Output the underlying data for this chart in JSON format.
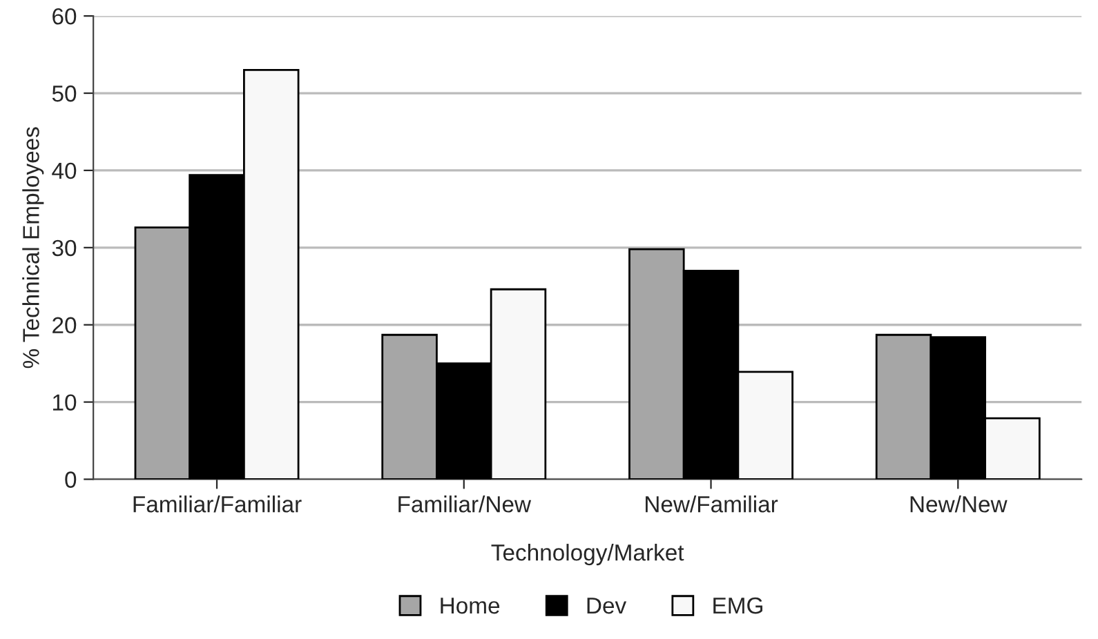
{
  "chart_data": {
    "type": "bar",
    "xlabel": "Technology/Market",
    "ylabel": "% Technical Employees",
    "categories": [
      "Familiar/Familiar",
      "Familiar/New",
      "New/Familiar",
      "New/New"
    ],
    "series": [
      {
        "name": "Home",
        "color": "#a6a6a6",
        "values": [
          32.6,
          18.7,
          29.8,
          18.7
        ]
      },
      {
        "name": "Dev",
        "color": "#000000",
        "values": [
          39.4,
          15.0,
          27.0,
          18.4
        ]
      },
      {
        "name": "EMG",
        "color": "#f8f8f8",
        "values": [
          53.0,
          24.6,
          13.9,
          7.9
        ]
      }
    ],
    "ylim": [
      0,
      60
    ],
    "yticks": [
      0,
      10,
      20,
      30,
      40,
      50,
      60
    ],
    "grid": "y",
    "legend": "bottom"
  }
}
